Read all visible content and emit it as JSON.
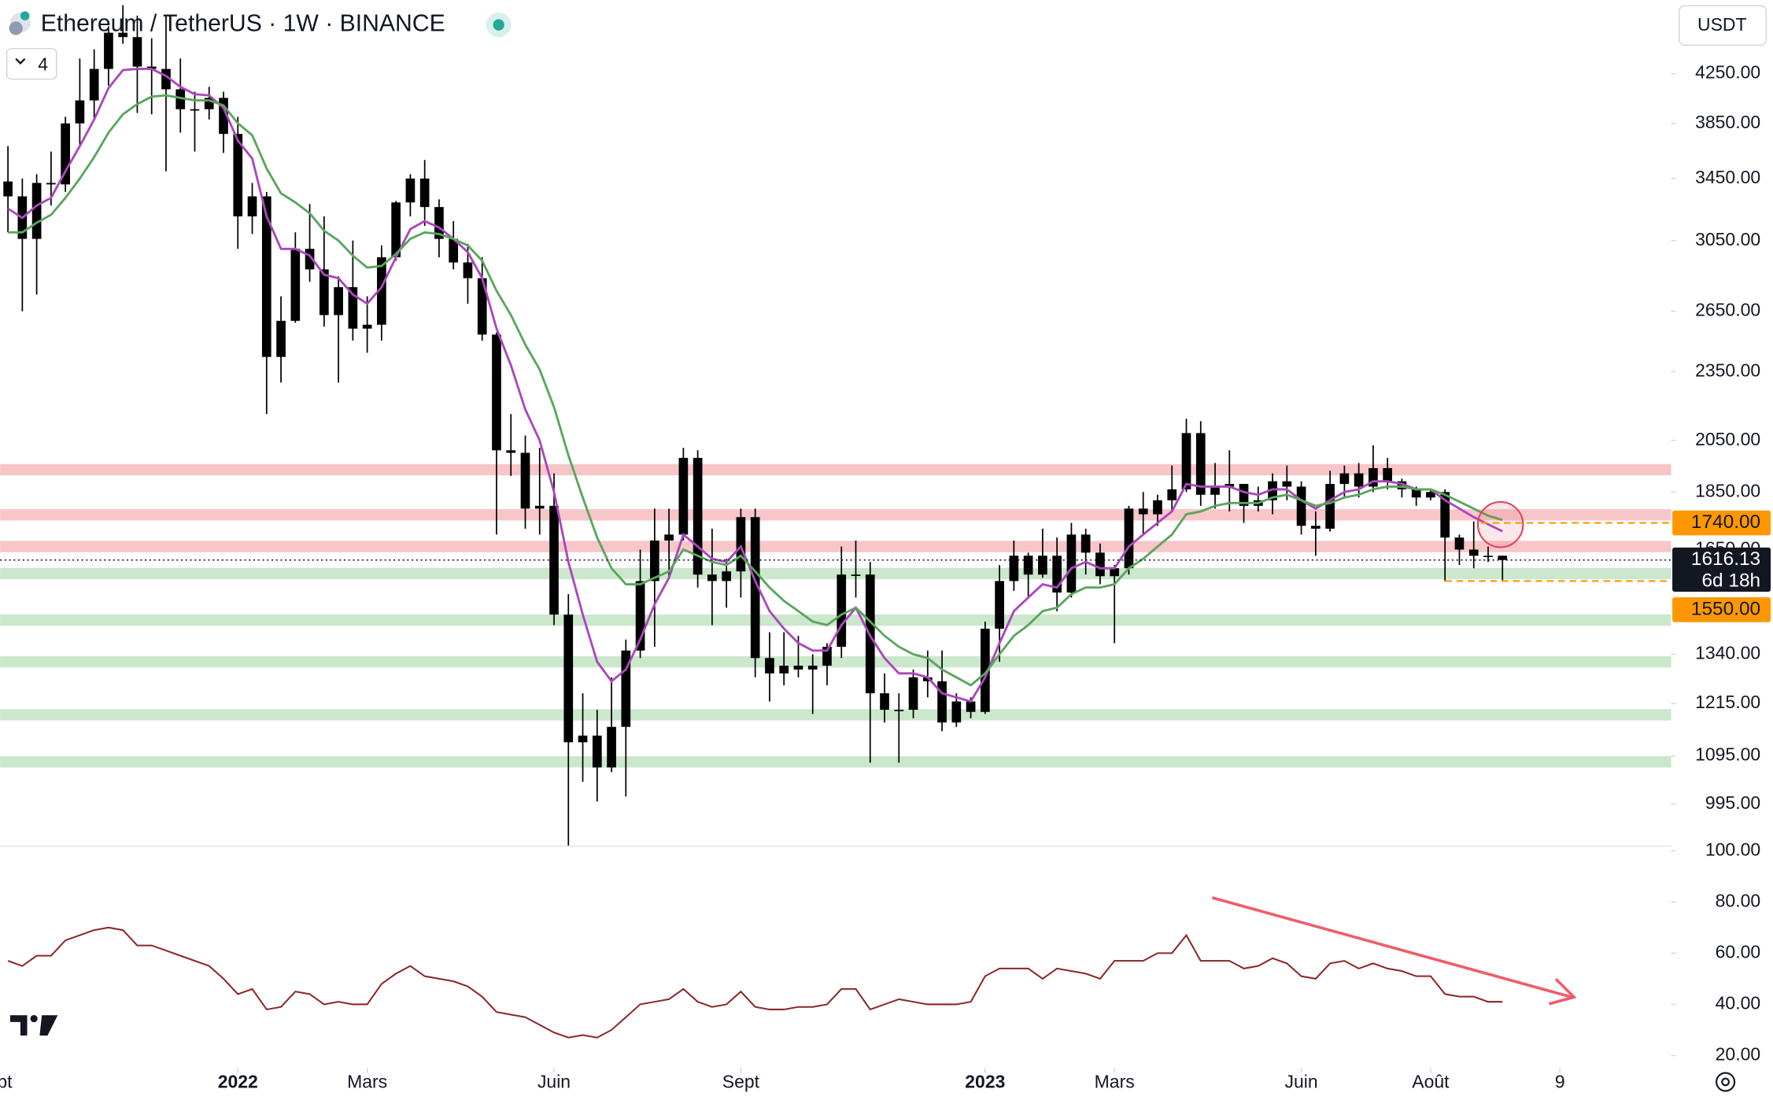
{
  "header": {
    "title": "Ethereum / TetherUS · 1W · BINANCE",
    "interval_badge": "4",
    "currency": "USDT"
  },
  "chart_data": [
    {
      "type": "candlestick",
      "categories": [
        null,
        null,
        null,
        null,
        null,
        null,
        null,
        null,
        null,
        null,
        null,
        null,
        null,
        null,
        null,
        null,
        null,
        null,
        null,
        null,
        null,
        null,
        null,
        null,
        null,
        null,
        null,
        null,
        null,
        null,
        null,
        null,
        null,
        null,
        null,
        null,
        null,
        null,
        null,
        null,
        null,
        null,
        null,
        null,
        null,
        null,
        null,
        null,
        null,
        null,
        null,
        null,
        null,
        null,
        null,
        null,
        null,
        null,
        null,
        null,
        null,
        null,
        null,
        null,
        null,
        null,
        null,
        null,
        null,
        null,
        null,
        null,
        null,
        null,
        null,
        null,
        null,
        null,
        null,
        null,
        null,
        null,
        null,
        null,
        null,
        null,
        null,
        null,
        null,
        null,
        null,
        null,
        null,
        null,
        null,
        null,
        null,
        null,
        null,
        null,
        null,
        null,
        null,
        null,
        null
      ],
      "open": [
        3430,
        3330,
        3060,
        3420,
        3410,
        3850,
        4030,
        4290,
        4610,
        4570,
        4310,
        4290,
        4120,
        3960,
        3960,
        4050,
        3770,
        3200,
        3330,
        2420,
        2600,
        3000,
        2880,
        2630,
        2780,
        2560,
        2580,
        2950,
        3290,
        3450,
        3260,
        3060,
        2920,
        2830,
        2530,
        2010,
        2000,
        1790,
        1800,
        1450,
        1125,
        1140,
        1070,
        1160,
        1350,
        1550,
        1680,
        1700,
        1980,
        1570,
        1550,
        1580,
        1760,
        1330,
        1290,
        1310,
        1300,
        1310,
        1360,
        1570,
        1570,
        1240,
        1200,
        1200,
        1280,
        1270,
        1170,
        1220,
        1195,
        1410,
        1550,
        1630,
        1570,
        1630,
        1515,
        1700,
        1640,
        1565,
        1590,
        1790,
        1770,
        1820,
        1860,
        2080,
        1840,
        1870,
        1880,
        1800,
        1820,
        1890,
        1870,
        1730,
        1720,
        1880,
        1920,
        1870,
        1940,
        1890,
        1860,
        1830,
        1850,
        1690,
        1650,
        1630,
        1630
      ],
      "high": [
        3680,
        3450,
        3480,
        3640,
        3900,
        4380,
        4460,
        4670,
        4870,
        4770,
        4560,
        4780,
        4380,
        4100,
        4140,
        4100,
        3900,
        3420,
        3360,
        2730,
        3100,
        3280,
        3200,
        2840,
        3050,
        2730,
        3020,
        3300,
        3480,
        3580,
        3310,
        3170,
        3030,
        2950,
        2540,
        2160,
        2070,
        2020,
        1920,
        1510,
        1240,
        1200,
        1280,
        1380,
        1650,
        1790,
        1790,
        2020,
        2010,
        1720,
        1620,
        1790,
        1790,
        1400,
        1400,
        1390,
        1340,
        1370,
        1660,
        1680,
        1610,
        1290,
        1240,
        1300,
        1350,
        1350,
        1240,
        1230,
        1430,
        1600,
        1680,
        1640,
        1720,
        1690,
        1740,
        1720,
        1670,
        1600,
        1800,
        1850,
        1840,
        1950,
        2140,
        2130,
        1960,
        2010,
        1880,
        1870,
        1920,
        1950,
        1890,
        1780,
        1930,
        1950,
        1960,
        2030,
        1980,
        1900,
        1870,
        1860,
        1860,
        1700,
        1745,
        1660,
        1630
      ],
      "low": [
        3100,
        2650,
        2740,
        3270,
        3360,
        3680,
        3890,
        4150,
        4510,
        3930,
        3920,
        3500,
        3780,
        3640,
        3880,
        3630,
        3000,
        3090,
        2160,
        2300,
        2590,
        2810,
        2570,
        2300,
        2500,
        2440,
        2500,
        2930,
        3200,
        3140,
        2950,
        2880,
        2690,
        2500,
        1700,
        1910,
        1720,
        1700,
        1420,
        880,
        1040,
        1000,
        1060,
        1010,
        1330,
        1360,
        1560,
        1680,
        1530,
        1420,
        1470,
        1500,
        1280,
        1220,
        1260,
        1280,
        1190,
        1260,
        1330,
        1500,
        1080,
        1170,
        1080,
        1180,
        1230,
        1150,
        1160,
        1180,
        1190,
        1320,
        1520,
        1500,
        1560,
        1460,
        1500,
        1570,
        1540,
        1370,
        1570,
        1700,
        1730,
        1780,
        1850,
        1800,
        1790,
        1780,
        1740,
        1780,
        1770,
        1820,
        1700,
        1630,
        1710,
        1830,
        1830,
        1850,
        1860,
        1830,
        1800,
        1820,
        1550,
        1600,
        1590,
        1610,
        1550
      ],
      "close": [
        3330,
        3060,
        3420,
        3410,
        3850,
        4030,
        4290,
        4610,
        4570,
        4310,
        4290,
        4120,
        3960,
        3960,
        4050,
        3770,
        3200,
        3330,
        2420,
        2600,
        3000,
        2880,
        2630,
        2780,
        2560,
        2580,
        2950,
        3290,
        3450,
        3260,
        3060,
        2920,
        2830,
        2530,
        2010,
        2000,
        1790,
        1800,
        1450,
        1125,
        1140,
        1070,
        1160,
        1350,
        1550,
        1680,
        1700,
        1980,
        1570,
        1550,
        1580,
        1760,
        1330,
        1290,
        1310,
        1300,
        1310,
        1360,
        1570,
        1570,
        1240,
        1200,
        1200,
        1280,
        1270,
        1170,
        1220,
        1195,
        1410,
        1550,
        1630,
        1570,
        1630,
        1515,
        1700,
        1640,
        1565,
        1590,
        1790,
        1770,
        1820,
        1860,
        2080,
        1840,
        1870,
        1880,
        1800,
        1820,
        1890,
        1870,
        1730,
        1720,
        1880,
        1920,
        1870,
        1940,
        1890,
        1860,
        1830,
        1850,
        1690,
        1650,
        1630,
        1630,
        1616.13
      ],
      "color": "#000000",
      "series": [
        {
          "color": "#ab47bc",
          "values": [
            3250,
            3190,
            3270,
            3320,
            3500,
            3680,
            3880,
            4130,
            4280,
            4290,
            4290,
            4230,
            4140,
            4080,
            4070,
            3970,
            3720,
            3590,
            3200,
            3000,
            3000,
            2960,
            2850,
            2830,
            2740,
            2690,
            2780,
            2950,
            3120,
            3170,
            3130,
            3060,
            2980,
            2830,
            2560,
            2380,
            2180,
            2050,
            1850,
            1610,
            1450,
            1320,
            1270,
            1300,
            1380,
            1480,
            1560,
            1700,
            1660,
            1620,
            1610,
            1660,
            1550,
            1460,
            1410,
            1370,
            1350,
            1350,
            1420,
            1470,
            1390,
            1330,
            1290,
            1290,
            1280,
            1240,
            1230,
            1220,
            1280,
            1370,
            1460,
            1500,
            1540,
            1530,
            1590,
            1610,
            1590,
            1590,
            1660,
            1700,
            1740,
            1780,
            1880,
            1870,
            1870,
            1870,
            1850,
            1840,
            1860,
            1860,
            1820,
            1790,
            1820,
            1850,
            1860,
            1890,
            1890,
            1880,
            1860,
            1860,
            1820,
            1790,
            1760,
            1735,
            1711
          ]
        },
        {
          "color": "#5aa65d",
          "values": [
            3100,
            3100,
            3160,
            3210,
            3320,
            3450,
            3600,
            3780,
            3920,
            4000,
            4060,
            4070,
            4050,
            4030,
            4030,
            3990,
            3850,
            3760,
            3520,
            3350,
            3290,
            3220,
            3110,
            3050,
            2960,
            2890,
            2900,
            2970,
            3060,
            3100,
            3090,
            3060,
            3020,
            2930,
            2760,
            2630,
            2480,
            2360,
            2190,
            1990,
            1830,
            1690,
            1590,
            1540,
            1540,
            1560,
            1580,
            1650,
            1630,
            1610,
            1600,
            1630,
            1580,
            1530,
            1490,
            1460,
            1430,
            1420,
            1450,
            1470,
            1430,
            1390,
            1360,
            1340,
            1330,
            1300,
            1280,
            1260,
            1290,
            1340,
            1390,
            1420,
            1460,
            1470,
            1510,
            1530,
            1530,
            1540,
            1590,
            1620,
            1660,
            1700,
            1770,
            1780,
            1800,
            1810,
            1810,
            1810,
            1830,
            1840,
            1820,
            1800,
            1810,
            1830,
            1840,
            1860,
            1870,
            1870,
            1860,
            1860,
            1840,
            1815,
            1790,
            1765,
            1750
          ]
        }
      ],
      "log_scale": true,
      "ylim": [
        916,
        4920
      ],
      "yticks": [
        {
          "value": 4250,
          "label": "4250.00"
        },
        {
          "value": 3850,
          "label": "3850.00"
        },
        {
          "value": 3450,
          "label": "3450.00"
        },
        {
          "value": 3050,
          "label": "3050.00"
        },
        {
          "value": 2650,
          "label": "2650.00"
        },
        {
          "value": 2350,
          "label": "2350.00"
        },
        {
          "value": 2050,
          "label": "2050.00"
        },
        {
          "value": 1850,
          "label": "1850.00"
        },
        {
          "value": 1650,
          "label": "1650.00"
        },
        {
          "value": 1340,
          "label": "1340.00"
        },
        {
          "value": 1215,
          "label": "1215.00"
        },
        {
          "value": 1095,
          "label": "1095.00"
        },
        {
          "value": 995,
          "label": "995.00"
        }
      ],
      "xlim": [
        -0.55,
        115.74
      ],
      "xticks": [
        {
          "value": -1,
          "label": "Sept"
        },
        {
          "value": 16,
          "label": "2022"
        },
        {
          "value": 25,
          "label": "Mars"
        },
        {
          "value": 38,
          "label": "Juin"
        },
        {
          "value": 51,
          "label": "Sept"
        },
        {
          "value": 68,
          "label": "2023"
        },
        {
          "value": 77,
          "label": "Mars"
        },
        {
          "value": 90,
          "label": "Juin"
        },
        {
          "value": 99,
          "label": "Août"
        },
        {
          "value": 108,
          "label": "9"
        }
      ],
      "zones": [
        {
          "value": 1934,
          "color": "#f7c6c9"
        },
        {
          "value": 1768,
          "color": "#f7c6c9"
        },
        {
          "value": 1660,
          "color": "#f7c6c9"
        },
        {
          "value": 1573,
          "color": "#cbe7cc"
        },
        {
          "value": 1434,
          "color": "#cbe7cc"
        },
        {
          "value": 1320,
          "color": "#cbe7cc"
        },
        {
          "value": 1188,
          "color": "#cbe7cc"
        },
        {
          "value": 1082,
          "color": "#cbe7cc"
        }
      ],
      "levels": [
        {
          "value": 1740,
          "label": "1740.00"
        },
        {
          "value": 1550,
          "label": "1550.00"
        }
      ],
      "level_color": "#ff9800",
      "last_price": 1616.13,
      "countdown": "6d 18h"
    },
    {
      "type": "line",
      "values": [
        57,
        55,
        59,
        59,
        65,
        67,
        69,
        70,
        69,
        63,
        63,
        61,
        59,
        57,
        55,
        50,
        44,
        46,
        38,
        39,
        45,
        44,
        40,
        41,
        40,
        40,
        48,
        52,
        55,
        51,
        50,
        49,
        47,
        43,
        37,
        36,
        35,
        32,
        29,
        27,
        28,
        27,
        30,
        35,
        40,
        41,
        42,
        46,
        41,
        39,
        40,
        45,
        39,
        38,
        38,
        39,
        39,
        40,
        46,
        46,
        38,
        40,
        42,
        41,
        40,
        40,
        40,
        41,
        51,
        54,
        54,
        54,
        50,
        54,
        53,
        52,
        50,
        57,
        57,
        57,
        60,
        60,
        67,
        57,
        57,
        57,
        54,
        55,
        58,
        56,
        51,
        50,
        56,
        57,
        54,
        56,
        54,
        53,
        51,
        51,
        44,
        43,
        43,
        41,
        41
      ],
      "color": "#8b2626",
      "ylim": [
        15,
        102
      ],
      "yticks": [
        {
          "value": 100,
          "label": "100.00"
        },
        {
          "value": 80,
          "label": "80.00"
        },
        {
          "value": 60,
          "label": "60.00"
        },
        {
          "value": 40,
          "label": "40.00"
        },
        {
          "value": 20,
          "label": "20.00"
        }
      ]
    }
  ]
}
